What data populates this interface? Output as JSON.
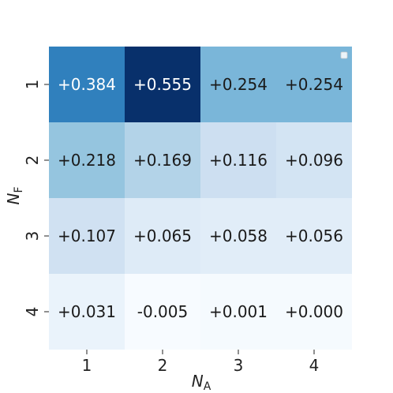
{
  "chart_data": {
    "type": "heatmap",
    "x_label": {
      "main": "N",
      "sub": "A"
    },
    "y_label": {
      "main": "N",
      "sub": "F"
    },
    "x_categories": [
      "1",
      "2",
      "3",
      "4"
    ],
    "y_categories": [
      "1",
      "2",
      "3",
      "4"
    ],
    "values": [
      [
        0.384,
        0.555,
        0.254,
        0.254
      ],
      [
        0.218,
        0.169,
        0.116,
        0.096
      ],
      [
        0.107,
        0.065,
        0.058,
        0.056
      ],
      [
        0.031,
        -0.005,
        0.001,
        0.0
      ]
    ],
    "cell_labels": [
      [
        "+0.384",
        "+0.555",
        "+0.254",
        "+0.254"
      ],
      [
        "+0.218",
        "+0.169",
        "+0.116",
        "+0.096"
      ],
      [
        "+0.107",
        "+0.065",
        "+0.058",
        "+0.056"
      ],
      [
        "+0.031",
        "-0.005",
        "+0.001",
        "+0.000"
      ]
    ],
    "colormap": "Blues",
    "colormap_stops": [
      "#f7fbff",
      "#deebf7",
      "#c6dbef",
      "#9ecae1",
      "#6baed6",
      "#4292c6",
      "#2171b5",
      "#08519c",
      "#08306b"
    ],
    "value_range": [
      -0.005,
      0.555
    ],
    "legend_position": "top-right",
    "grid": false
  }
}
